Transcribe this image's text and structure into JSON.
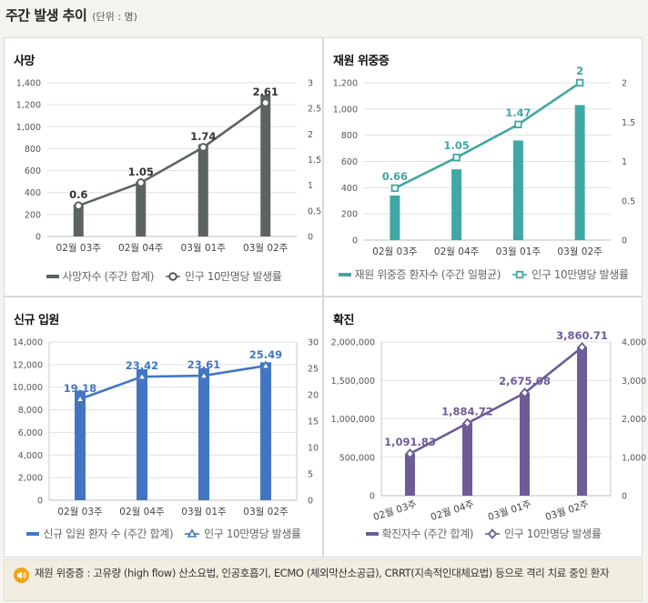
{
  "header": {
    "title": "주간 발생 추이",
    "unit": "(단위 : 명)"
  },
  "note": {
    "text": "재원 위중증 : 고유량 (high flow) 산소요법, 인공호흡기, ECMO (체외막산소공급), CRRT(지속적인대체요법) 등으로 격리 치료 중인 환자"
  },
  "colors": {
    "death": "#5b6462",
    "severe": "#40a7a5",
    "admit": "#4376c2",
    "confirm": "#6d5c97"
  },
  "chart_data": [
    {
      "id": "death",
      "title": "사망",
      "type": "bar",
      "categories": [
        "02월 03주",
        "02월 04주",
        "03월 01주",
        "03월 02주"
      ],
      "bar_series": {
        "name": "사망자수 (주간 합계)",
        "values": [
          290,
          500,
          840,
          1290
        ]
      },
      "line_series": {
        "name": "인구 10만명당 발생률",
        "values": [
          0.6,
          1.05,
          1.74,
          2.61
        ],
        "labels": [
          "0.6",
          "1.05",
          "1.74",
          "2.61"
        ]
      },
      "ylim": [
        0,
        1400
      ],
      "y_ticks": [
        0,
        200,
        400,
        600,
        800,
        1000,
        1200,
        1400
      ],
      "y_tick_labels": [
        "0",
        "200",
        "400",
        "600",
        "800",
        "1,000",
        "1,200",
        "1,400"
      ],
      "y2lim": [
        0,
        3
      ],
      "y2_ticks": [
        0,
        0.5,
        1,
        1.5,
        2,
        2.5,
        3
      ],
      "y2_tick_labels": [
        "0",
        "0.5",
        "1",
        "1.5",
        "2",
        "2.5",
        "3"
      ],
      "marker": "circle",
      "rotate_x": false
    },
    {
      "id": "severe",
      "title": "재원 위중증",
      "type": "bar",
      "categories": [
        "02월 03주",
        "02월 04주",
        "03월 01주",
        "03월 02주"
      ],
      "bar_series": {
        "name": "재원 위중증 환자수 (주간 일평균)",
        "values": [
          340,
          540,
          760,
          1030
        ]
      },
      "line_series": {
        "name": "인구 10만명당 발생률",
        "values": [
          0.66,
          1.05,
          1.47,
          2
        ],
        "labels": [
          "0.66",
          "1.05",
          "1.47",
          "2"
        ]
      },
      "ylim": [
        0,
        1200
      ],
      "y_ticks": [
        0,
        200,
        400,
        600,
        800,
        1000,
        1200
      ],
      "y_tick_labels": [
        "0",
        "200",
        "400",
        "600",
        "800",
        "1,000",
        "1,200"
      ],
      "y2lim": [
        0,
        2
      ],
      "y2_ticks": [
        0,
        0.5,
        1,
        1.5,
        2
      ],
      "y2_tick_labels": [
        "0",
        "0.5",
        "1",
        "1.5",
        "2"
      ],
      "marker": "square",
      "rotate_x": false
    },
    {
      "id": "admit",
      "title": "신규 입원",
      "type": "bar",
      "categories": [
        "02월 03주",
        "02월 04주",
        "03월 01주",
        "03월 02주"
      ],
      "bar_series": {
        "name": "신규 입원 환자 수 (주간 합계)",
        "values": [
          9700,
          11600,
          11700,
          12200
        ]
      },
      "line_series": {
        "name": "인구 10만명당 발생률",
        "values": [
          19.18,
          23.42,
          23.61,
          25.49
        ],
        "labels": [
          "19.18",
          "23.42",
          "23.61",
          "25.49"
        ]
      },
      "ylim": [
        0,
        14000
      ],
      "y_ticks": [
        0,
        2000,
        4000,
        6000,
        8000,
        10000,
        12000,
        14000
      ],
      "y_tick_labels": [
        "0",
        "2,000",
        "4,000",
        "6,000",
        "8,000",
        "10,000",
        "12,000",
        "14,000"
      ],
      "y2lim": [
        0,
        30
      ],
      "y2_ticks": [
        0,
        5,
        10,
        15,
        20,
        25,
        30
      ],
      "y2_tick_labels": [
        "0",
        "5",
        "10",
        "15",
        "20",
        "25",
        "30"
      ],
      "marker": "triangle",
      "rotate_x": false
    },
    {
      "id": "confirm",
      "title": "확진",
      "type": "bar",
      "categories": [
        "02월 03주",
        "02월 04주",
        "03월 01주",
        "03월 02주"
      ],
      "bar_series": {
        "name": "확진자수 (주간 합계)",
        "values": [
          545000,
          950000,
          1340000,
          1935000
        ]
      },
      "line_series": {
        "name": "인구 10만명당 발생률",
        "values": [
          1091.83,
          1884.72,
          2675.08,
          3860.71
        ],
        "labels": [
          "1,091.83",
          "1,884.72",
          "2,675.08",
          "3,860.71"
        ]
      },
      "ylim": [
        0,
        2000000
      ],
      "y_ticks": [
        0,
        500000,
        1000000,
        1500000,
        2000000
      ],
      "y_tick_labels": [
        "0",
        "500,000",
        "1,000,000",
        "1,500,000",
        "2,000,000"
      ],
      "y2lim": [
        0,
        4000
      ],
      "y2_ticks": [
        0,
        1000,
        2000,
        3000,
        4000
      ],
      "y2_tick_labels": [
        "0",
        "1,000",
        "2,000",
        "3,000",
        "4,000"
      ],
      "marker": "diamond",
      "rotate_x": true
    }
  ]
}
